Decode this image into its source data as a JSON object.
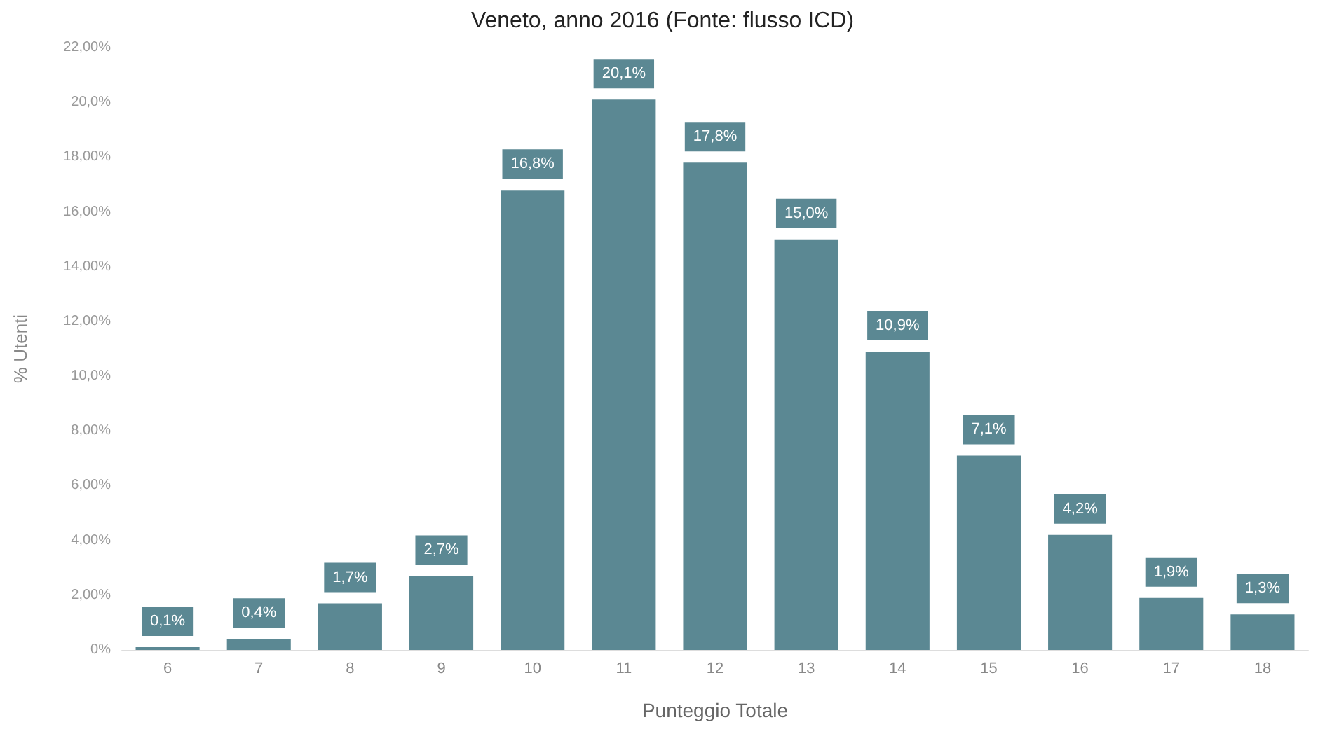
{
  "chart_data": {
    "type": "bar",
    "title": "Veneto, anno 2016 (Fonte: flusso ICD)",
    "xlabel": "Punteggio Totale",
    "ylabel": "% Utenti",
    "categories": [
      "6",
      "7",
      "8",
      "9",
      "10",
      "11",
      "12",
      "13",
      "14",
      "15",
      "16",
      "17",
      "18"
    ],
    "values": [
      0.1,
      0.4,
      1.7,
      2.7,
      16.8,
      20.1,
      17.8,
      15.0,
      10.9,
      7.1,
      4.2,
      1.9,
      1.3
    ],
    "value_labels": [
      "0,1%",
      "0,4%",
      "1,7%",
      "2,7%",
      "16,8%",
      "20,1%",
      "17,8%",
      "15,0%",
      "10,9%",
      "7,1%",
      "4,2%",
      "1,9%",
      "1,3%"
    ],
    "color": "#5b8893",
    "ylim": [
      0,
      22
    ],
    "yticks": [
      {
        "value": 0,
        "label": "0%"
      },
      {
        "value": 2,
        "label": "2,00%"
      },
      {
        "value": 4,
        "label": "4,00%"
      },
      {
        "value": 6,
        "label": "6,00%"
      },
      {
        "value": 8,
        "label": "8,00%"
      },
      {
        "value": 10,
        "label": "10,0%"
      },
      {
        "value": 12,
        "label": "12,00%"
      },
      {
        "value": 14,
        "label": "14,00%"
      },
      {
        "value": 16,
        "label": "16,00%"
      },
      {
        "value": 18,
        "label": "18,00%"
      },
      {
        "value": 20,
        "label": "20,0%"
      },
      {
        "value": 22,
        "label": "22,00%"
      }
    ],
    "grid": false
  }
}
